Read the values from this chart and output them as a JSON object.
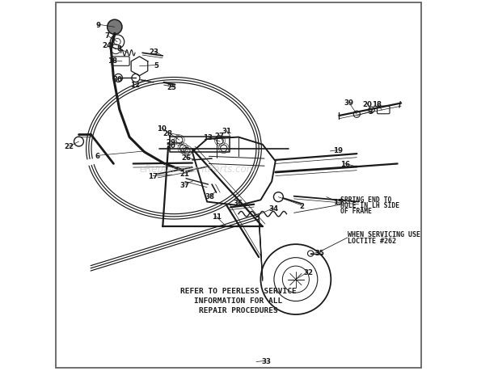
{
  "bg_color": "#ffffff",
  "line_color": "#1a1a1a",
  "text_color": "#1a1a1a",
  "watermark": "eReplacementParts.com",
  "annotation1_line1": "WHEN SERVICING USE",
  "annotation1_line2": "LOCTITE #262",
  "annotation2_line1": "SPRING END TO",
  "annotation2_line2": "HOLE IN LH SIDE",
  "annotation2_line3": "OF FRAME",
  "annotation3_line1": "REFER TO PEERLESS SERVICE",
  "annotation3_line2": "INFORMATION FOR ALL",
  "annotation3_line3": "REPAIR PROCEDURES"
}
